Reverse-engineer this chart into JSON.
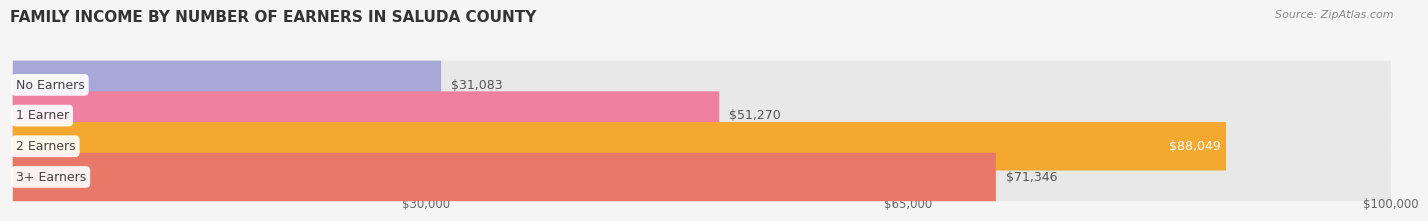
{
  "title": "FAMILY INCOME BY NUMBER OF EARNERS IN SALUDA COUNTY",
  "source": "Source: ZipAtlas.com",
  "categories": [
    "No Earners",
    "1 Earner",
    "2 Earners",
    "3+ Earners"
  ],
  "values": [
    31083,
    51270,
    88049,
    71346
  ],
  "bar_colors": [
    "#a8a8d8",
    "#f080a0",
    "#f5a830",
    "#e87868"
  ],
  "xmin": 0,
  "xmax": 100000,
  "xticks": [
    30000,
    65000,
    100000
  ],
  "xtick_labels": [
    "$30,000",
    "$65,000",
    "$100,000"
  ],
  "background_color": "#f5f5f5",
  "bar_bg_color": "#e8e8e8",
  "title_fontsize": 11,
  "bar_height": 0.58,
  "label_fontsize": 9,
  "value_fontsize": 9,
  "source_fontsize": 8
}
